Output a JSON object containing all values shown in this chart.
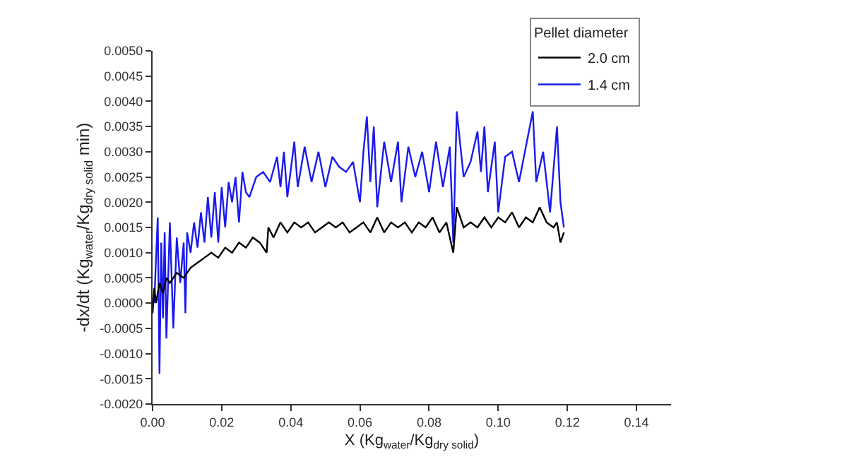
{
  "chart_data": {
    "type": "line",
    "xlabel": "X (Kg$_{water}$/Kg$_{dry solid}$)",
    "ylabel": "-dx/dt (Kg$_{water}$/Kg$_{dry solid}$ min)",
    "legend_title": "Pellet diameter",
    "legend": "top right",
    "xlim": [
      0,
      0.15
    ],
    "xticks": [
      {
        "value": 0,
        "label": "0.00"
      },
      {
        "value": 0.02,
        "label": "0.02"
      },
      {
        "value": 0.04,
        "label": "0.04"
      },
      {
        "value": 0.06,
        "label": "0.06"
      },
      {
        "value": 0.08,
        "label": "0.08"
      },
      {
        "value": 0.1,
        "label": "0.10"
      },
      {
        "value": 0.12,
        "label": "0.12"
      },
      {
        "value": 0.14,
        "label": "0.14"
      }
    ],
    "ylim": [
      -0.002,
      0.005
    ],
    "yticks": [
      {
        "value": -0.002,
        "label": "-0.0020"
      },
      {
        "value": -0.0015,
        "label": "-0.0015"
      },
      {
        "value": -0.001,
        "label": "-0.0010"
      },
      {
        "value": -0.0005,
        "label": "-0.0005"
      },
      {
        "value": 0,
        "label": "0.0000"
      },
      {
        "value": 0.0005,
        "label": "0.0005"
      },
      {
        "value": 0.001,
        "label": "0.0010"
      },
      {
        "value": 0.0015,
        "label": "0.0015"
      },
      {
        "value": 0.002,
        "label": "0.0020"
      },
      {
        "value": 0.0025,
        "label": "0.0025"
      },
      {
        "value": 0.003,
        "label": "0.0030"
      },
      {
        "value": 0.0035,
        "label": "0.0035"
      },
      {
        "value": 0.004,
        "label": "0.0040"
      },
      {
        "value": 0.0045,
        "label": "0.0045"
      },
      {
        "value": 0.005,
        "label": "0.0050"
      }
    ],
    "marker": "none",
    "line_style": "solid",
    "series": [
      {
        "name": "2.0 cm",
        "color": "#000000",
        "x": [
          0.0,
          0.0005,
          0.001,
          0.002,
          0.003,
          0.004,
          0.005,
          0.007,
          0.009,
          0.011,
          0.013,
          0.015,
          0.017,
          0.019,
          0.021,
          0.023,
          0.025,
          0.027,
          0.029,
          0.031,
          0.033,
          0.0335,
          0.035,
          0.037,
          0.039,
          0.041,
          0.043,
          0.045,
          0.047,
          0.049,
          0.051,
          0.053,
          0.055,
          0.057,
          0.059,
          0.061,
          0.063,
          0.065,
          0.067,
          0.069,
          0.071,
          0.073,
          0.075,
          0.077,
          0.079,
          0.081,
          0.083,
          0.085,
          0.087,
          0.088,
          0.09,
          0.092,
          0.094,
          0.096,
          0.098,
          0.1,
          0.102,
          0.104,
          0.106,
          0.108,
          0.11,
          0.112,
          0.114,
          0.116,
          0.117,
          0.118,
          0.119
        ],
        "values": [
          -0.0002,
          0.0003,
          0.0,
          0.0004,
          0.0002,
          0.0005,
          0.0004,
          0.0006,
          0.0005,
          0.0007,
          0.0008,
          0.0009,
          0.001,
          0.0009,
          0.0011,
          0.001,
          0.0012,
          0.0011,
          0.0013,
          0.0012,
          0.001,
          0.0015,
          0.0013,
          0.0016,
          0.0014,
          0.0016,
          0.0015,
          0.0016,
          0.0014,
          0.0015,
          0.0016,
          0.0015,
          0.0016,
          0.0014,
          0.0015,
          0.0016,
          0.0014,
          0.0017,
          0.0014,
          0.0016,
          0.0015,
          0.0016,
          0.0014,
          0.0016,
          0.0015,
          0.0017,
          0.0014,
          0.0016,
          0.001,
          0.0019,
          0.0015,
          0.0016,
          0.0015,
          0.0017,
          0.0015,
          0.0017,
          0.0016,
          0.0018,
          0.0015,
          0.0017,
          0.0016,
          0.0019,
          0.0016,
          0.0015,
          0.0016,
          0.0012,
          0.0014
        ]
      },
      {
        "name": "1.4 cm",
        "color": "#1a1aee",
        "x": [
          0.0005,
          0.001,
          0.0015,
          0.002,
          0.0025,
          0.003,
          0.0035,
          0.004,
          0.005,
          0.006,
          0.007,
          0.008,
          0.009,
          0.0095,
          0.01,
          0.011,
          0.012,
          0.013,
          0.014,
          0.015,
          0.016,
          0.017,
          0.018,
          0.019,
          0.02,
          0.021,
          0.022,
          0.023,
          0.024,
          0.025,
          0.026,
          0.027,
          0.028,
          0.03,
          0.032,
          0.034,
          0.036,
          0.037,
          0.038,
          0.039,
          0.041,
          0.042,
          0.044,
          0.046,
          0.048,
          0.05,
          0.052,
          0.054,
          0.056,
          0.058,
          0.06,
          0.061,
          0.062,
          0.063,
          0.064,
          0.065,
          0.067,
          0.069,
          0.071,
          0.072,
          0.074,
          0.076,
          0.078,
          0.08,
          0.082,
          0.084,
          0.086,
          0.087,
          0.088,
          0.09,
          0.092,
          0.094,
          0.095,
          0.096,
          0.097,
          0.099,
          0.1,
          0.102,
          0.104,
          0.106,
          0.108,
          0.11,
          0.111,
          0.113,
          0.115,
          0.117,
          0.118,
          0.119
        ],
        "values": [
          0.0,
          0.0009,
          0.0017,
          -0.0014,
          0.0012,
          -0.0003,
          0.0014,
          -0.0007,
          0.0016,
          -0.0005,
          0.0013,
          0.0004,
          0.0012,
          -0.0002,
          0.0014,
          0.001,
          0.0016,
          0.0011,
          0.0018,
          0.0012,
          0.0021,
          0.0013,
          0.0022,
          0.0012,
          0.0023,
          0.0015,
          0.0024,
          0.002,
          0.0025,
          0.0016,
          0.0026,
          0.0022,
          0.0021,
          0.0025,
          0.0026,
          0.0024,
          0.0029,
          0.0023,
          0.003,
          0.0021,
          0.0032,
          0.0023,
          0.0031,
          0.0024,
          0.003,
          0.0023,
          0.0029,
          0.0027,
          0.0026,
          0.0028,
          0.002,
          0.003,
          0.0037,
          0.0024,
          0.0035,
          0.0019,
          0.0032,
          0.0024,
          0.0032,
          0.002,
          0.0031,
          0.0025,
          0.003,
          0.0022,
          0.0032,
          0.0023,
          0.0031,
          0.0012,
          0.0038,
          0.0025,
          0.0028,
          0.0034,
          0.0026,
          0.0035,
          0.0022,
          0.0032,
          0.0018,
          0.0029,
          0.003,
          0.0024,
          0.0031,
          0.0038,
          0.0024,
          0.003,
          0.0018,
          0.0035,
          0.002,
          0.0015
        ]
      }
    ]
  }
}
